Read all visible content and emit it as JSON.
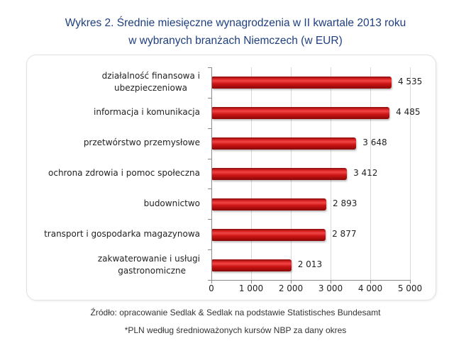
{
  "title_line1": "Wykres 2. Średnie miesięczne wynagrodzenia w II kwartale 2013 roku",
  "title_line2": "w wybranych branżach Niemczech (w EUR)",
  "source": "Źródło: opracowanie Sedlak & Sedlak na podstawie Statistisches Bundesamt",
  "note": "*PLN według średnioważonych kursów NBP za dany okres",
  "colors": {
    "title": "#1f3f7f",
    "bar": "#cc1414",
    "grid": "#d9d9d9"
  },
  "x_ticks": [
    "0",
    "1 000",
    "2 000",
    "3 000",
    "4 000",
    "5 000"
  ],
  "bars": [
    {
      "label_line1": "działalność finansowa i",
      "label_line2": "ubezpieczeniowa",
      "value_label": "4 535"
    },
    {
      "label_line1": "informacja i komunikacja",
      "label_line2": "",
      "value_label": "4 485"
    },
    {
      "label_line1": "przetwórstwo przemysłowe",
      "label_line2": "",
      "value_label": "3 648"
    },
    {
      "label_line1": "ochrona zdrowia i pomoc społeczna",
      "label_line2": "",
      "value_label": "3 412"
    },
    {
      "label_line1": "budownictwo",
      "label_line2": "",
      "value_label": "2 893"
    },
    {
      "label_line1": "transport i gospodarka magazynowa",
      "label_line2": "",
      "value_label": "2 877"
    },
    {
      "label_line1": "zakwaterowanie i usługi",
      "label_line2": "gastronomiczne",
      "value_label": "2 013"
    }
  ],
  "chart_data": {
    "type": "bar",
    "orientation": "horizontal",
    "title": "Wykres 2. Średnie miesięczne wynagrodzenia w II kwartale 2013 roku w wybranych branżach Niemczech (w EUR)",
    "categories": [
      "działalność finansowa i ubezpieczeniowa",
      "informacja i komunikacja",
      "przetwórstwo przemysłowe",
      "ochrona zdrowia i pomoc społeczna",
      "budownictwo",
      "transport i gospodarka magazynowa",
      "zakwaterowanie i usługi gastronomiczne"
    ],
    "values": [
      4535,
      4485,
      3648,
      3412,
      2893,
      2877,
      2013
    ],
    "xlabel": "",
    "ylabel": "",
    "xlim": [
      0,
      5000
    ],
    "x_ticks": [
      0,
      1000,
      2000,
      3000,
      4000,
      5000
    ],
    "grid": "vertical",
    "legend": "none",
    "data_labels": true,
    "unit": "EUR"
  }
}
